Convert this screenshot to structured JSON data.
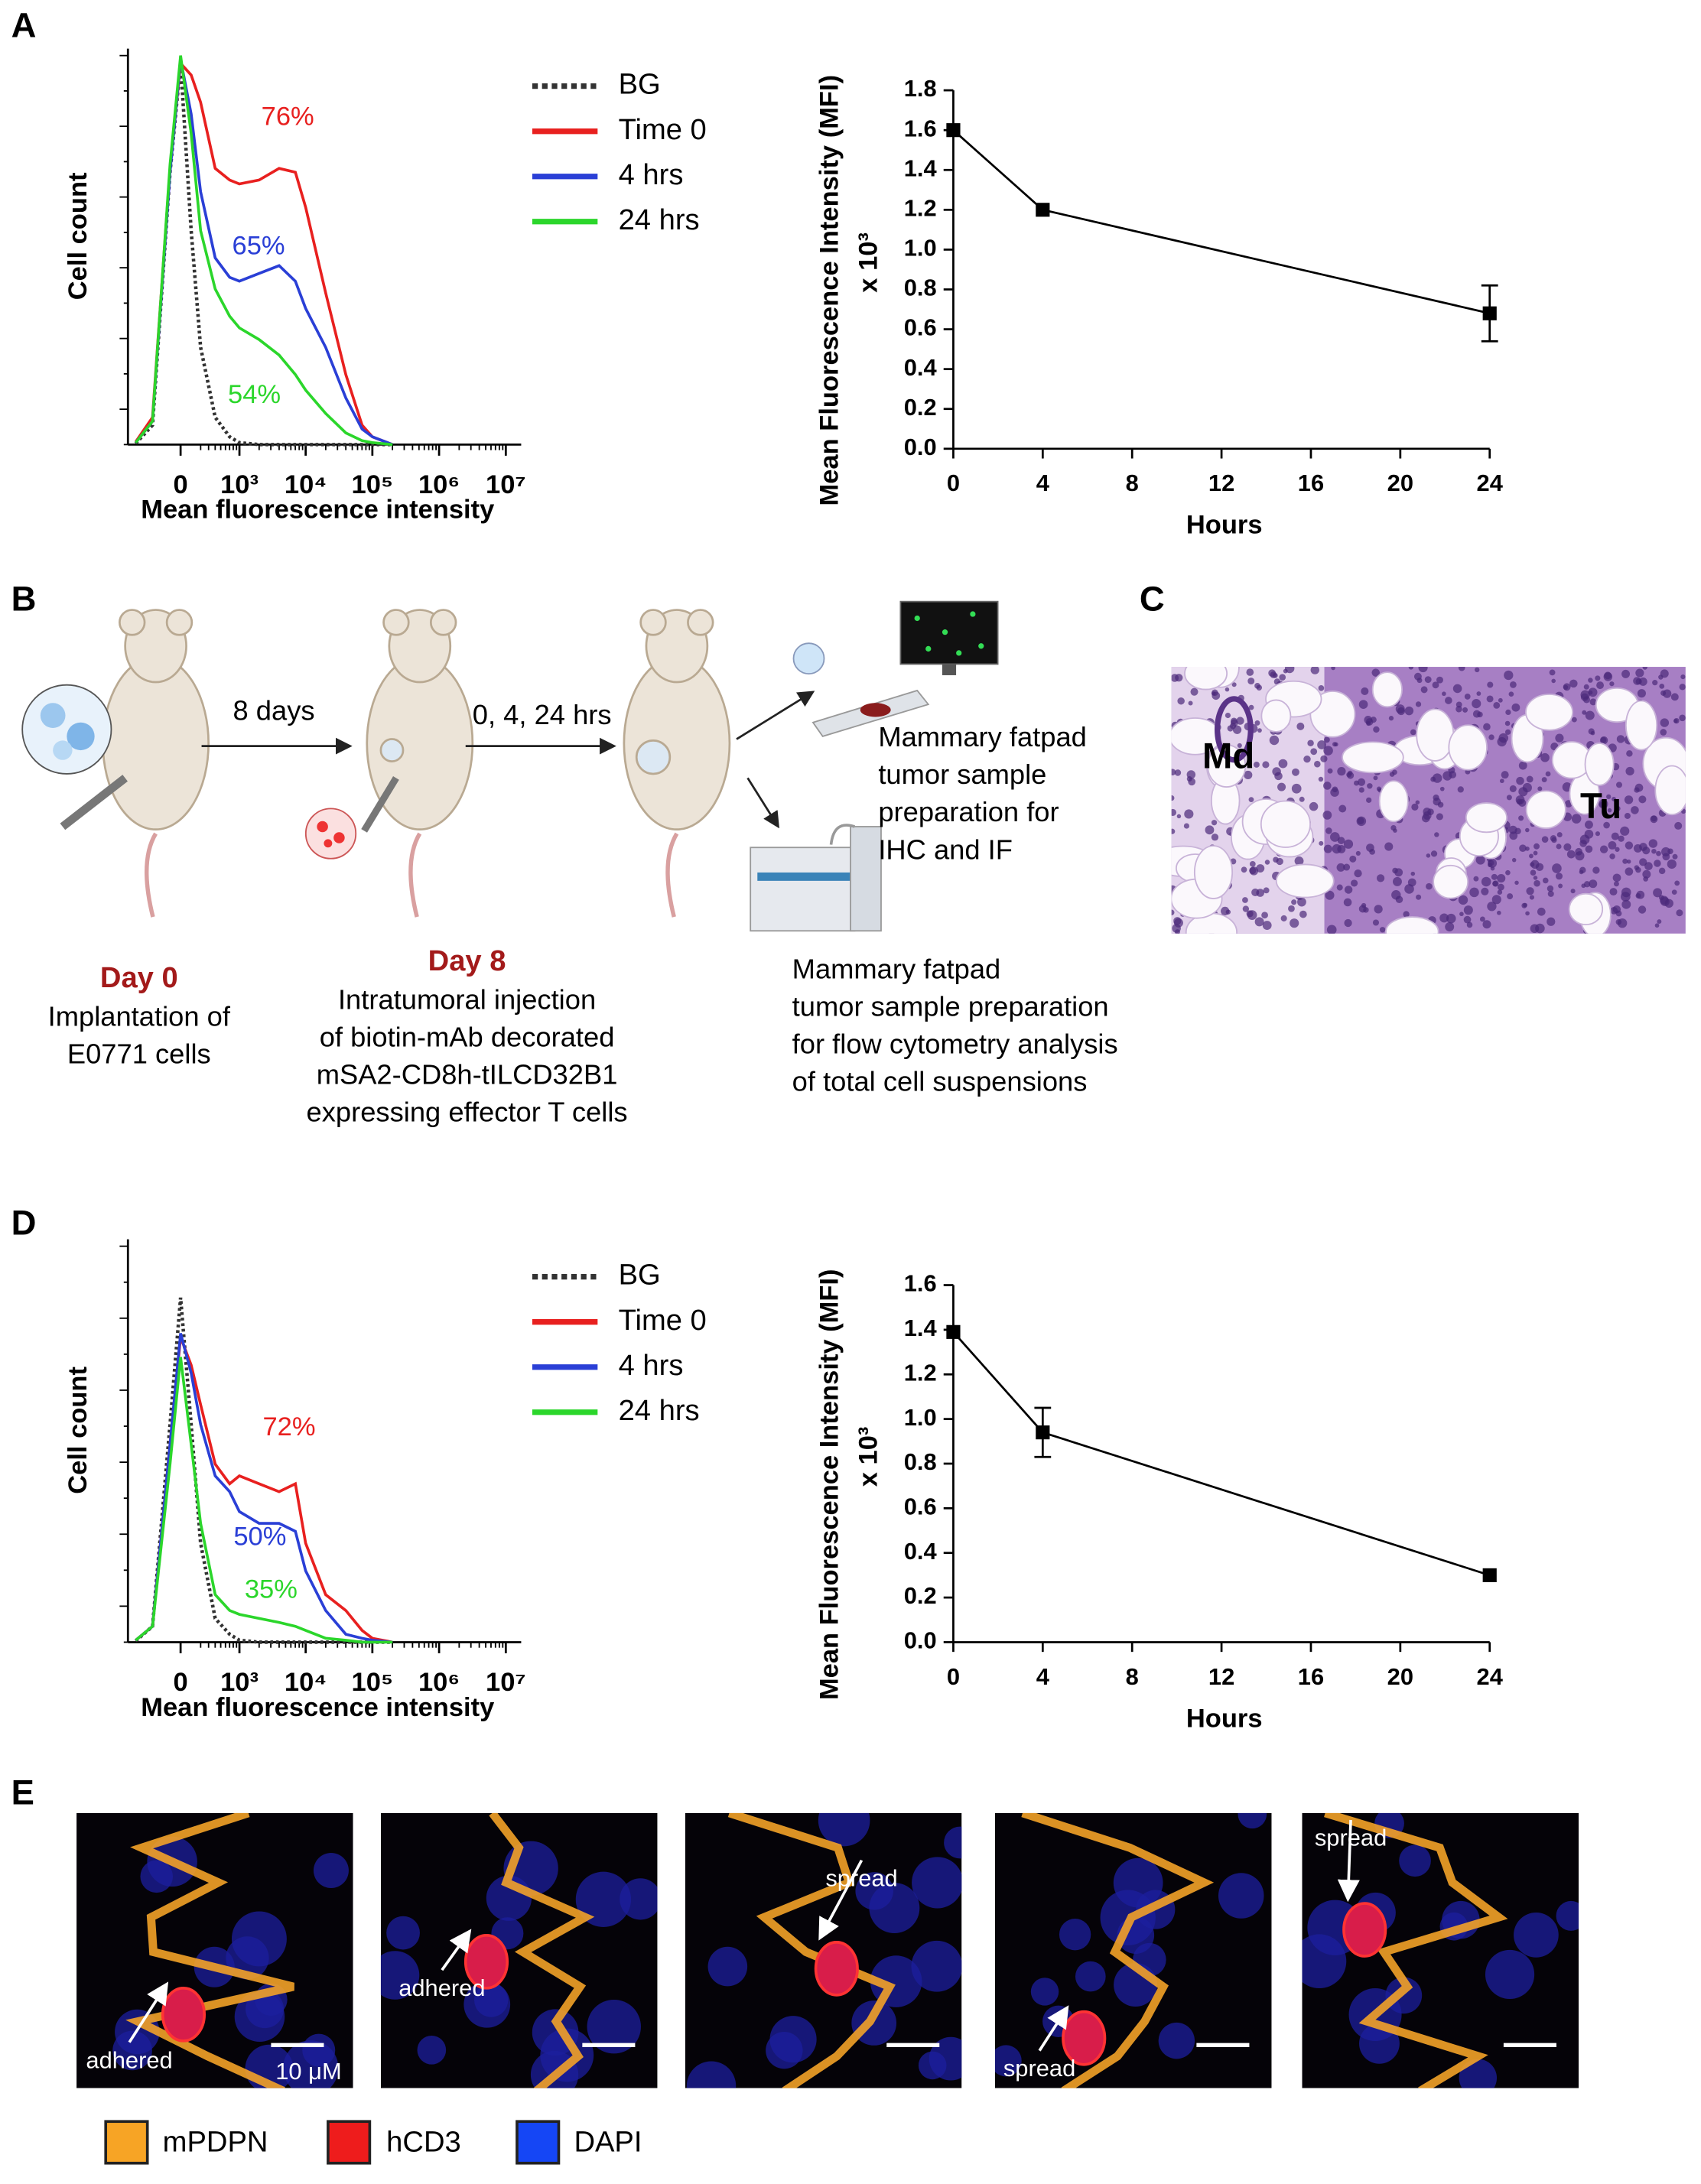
{
  "panel_labels": [
    "A",
    "B",
    "C",
    "D",
    "E"
  ],
  "chart_data": [
    {
      "type": "line",
      "xscale": "biexponential",
      "xlabel": "Mean fluorescence intensity",
      "ylabel": "Cell count",
      "x": [
        -600,
        -300,
        -100,
        0,
        100,
        200,
        400,
        700,
        1000,
        2000,
        4000,
        7000,
        10000,
        20000,
        40000,
        70000,
        100000,
        200000
      ],
      "xlim": [
        -800,
        17000000
      ],
      "xticks": [
        0,
        {
          "value": 1000,
          "label": "10³"
        },
        {
          "value": 10000,
          "label": "10⁴"
        },
        {
          "value": 100000,
          "label": "10⁵"
        },
        {
          "value": 1000000,
          "label": "10⁶"
        },
        {
          "value": 10000000,
          "label": "10⁷"
        }
      ],
      "ylim": [
        0,
        100
      ],
      "series": [
        {
          "name": "BG",
          "color": "#333333",
          "style": "dotted",
          "values": [
            0.3,
            5,
            70,
            98,
            55,
            25,
            7,
            2,
            0.5,
            0,
            0,
            0,
            0,
            0,
            0,
            0,
            0,
            0
          ]
        },
        {
          "name": "Time 0",
          "color": "#e8201f",
          "values": [
            0.7,
            7,
            71,
            98,
            95,
            88,
            71,
            68,
            67,
            68,
            71,
            70,
            61,
            39,
            18,
            5,
            2,
            0
          ]
        },
        {
          "name": "4 hrs",
          "color": "#2a3fd6",
          "values": [
            0.5,
            6,
            70,
            99,
            85,
            65,
            48,
            43,
            42,
            44,
            46,
            42,
            35,
            25,
            12,
            4,
            2,
            0
          ]
        },
        {
          "name": "24 hrs",
          "color": "#2bd62b",
          "values": [
            0.5,
            6,
            72,
            100,
            80,
            55,
            40,
            33,
            30,
            27,
            23,
            18,
            14,
            8,
            3,
            1,
            0.5,
            0
          ]
        }
      ],
      "annotations": [
        {
          "text": "76%",
          "color": "#e8201f"
        },
        {
          "text": "65%",
          "color": "#2a3fd6"
        },
        {
          "text": "54%",
          "color": "#2bd62b"
        }
      ]
    },
    {
      "type": "errorline",
      "xlabel": "Hours",
      "ylabel": "Mean Fluorescence Intensity (MFI)",
      "ylabel_unit": "x 10³",
      "x": [
        0,
        4,
        24
      ],
      "values": [
        1.6,
        1.2,
        0.68
      ],
      "errors": [
        null,
        null,
        0.14
      ],
      "color": "#000000",
      "xlim": [
        0,
        24
      ],
      "xticks": [
        0,
        4,
        8,
        12,
        16,
        20,
        24
      ],
      "ylim": [
        0,
        1.8
      ],
      "yticks": [
        {
          "value": 0,
          "label": "0.0"
        },
        0.2,
        0.4,
        0.6,
        0.8,
        {
          "value": 1,
          "label": "1.0"
        },
        1.2,
        1.4,
        1.6,
        1.8
      ]
    },
    {
      "type": "line",
      "xscale": "biexponential",
      "xlabel": "Mean fluorescence intensity",
      "ylabel": "Cell count",
      "x": [
        -600,
        -300,
        -100,
        0,
        100,
        200,
        400,
        700,
        1000,
        2000,
        4000,
        7000,
        10000,
        20000,
        40000,
        70000,
        100000,
        200000
      ],
      "xlim": [
        -800,
        17000000
      ],
      "xticks": [
        0,
        {
          "value": 1000,
          "label": "10³"
        },
        {
          "value": 10000,
          "label": "10⁴"
        },
        {
          "value": 100000,
          "label": "10⁵"
        },
        {
          "value": 1000000,
          "label": "10⁶"
        },
        {
          "value": 10000000,
          "label": "10⁷"
        }
      ],
      "ylim": [
        0,
        100
      ],
      "series": [
        {
          "name": "BG",
          "color": "#333333",
          "style": "dotted",
          "values": [
            0.3,
            4,
            55,
            87,
            55,
            25,
            6,
            2,
            0.5,
            0,
            0,
            0,
            0,
            0,
            0,
            0,
            0,
            0
          ]
        },
        {
          "name": "Time 0",
          "color": "#e8201f",
          "values": [
            0.5,
            4,
            50,
            77,
            70,
            60,
            45,
            40,
            42,
            40,
            38,
            40,
            25,
            12,
            8,
            3,
            1,
            0
          ]
        },
        {
          "name": "4 hrs",
          "color": "#2a3fd6",
          "values": [
            0.5,
            4,
            50,
            78,
            68,
            55,
            42,
            38,
            33,
            30,
            30,
            28,
            18,
            8,
            2,
            1,
            0.5,
            0
          ]
        },
        {
          "name": "24 hrs",
          "color": "#2bd62b",
          "values": [
            0.5,
            4,
            45,
            72,
            50,
            30,
            12,
            8,
            7,
            6,
            5,
            4,
            3,
            1,
            0.5,
            0,
            0,
            0
          ]
        }
      ],
      "annotations": [
        {
          "text": "72%",
          "color": "#e8201f"
        },
        {
          "text": "50%",
          "color": "#2a3fd6"
        },
        {
          "text": "35%",
          "color": "#2bd62b"
        }
      ]
    },
    {
      "type": "errorline",
      "xlabel": "Hours",
      "ylabel": "Mean Fluorescence Intensity (MFI)",
      "ylabel_unit": "x 10³",
      "x": [
        0,
        4,
        24
      ],
      "values": [
        1.39,
        0.94,
        0.3
      ],
      "errors": [
        null,
        0.11,
        null
      ],
      "color": "#000000",
      "xlim": [
        0,
        24
      ],
      "xticks": [
        0,
        4,
        8,
        12,
        16,
        20,
        24
      ],
      "ylim": [
        0,
        1.6
      ],
      "yticks": [
        {
          "value": 0,
          "label": "0.0"
        },
        0.2,
        0.4,
        0.6,
        0.8,
        {
          "value": 1,
          "label": "1.0"
        },
        1.2,
        1.4,
        1.6
      ]
    }
  ],
  "diagram": {
    "arrows": [
      "8 days",
      "0, 4, 24 hrs"
    ],
    "steps": [
      {
        "title": "Day 0",
        "lines": [
          "Implantation of",
          "E0771 cells"
        ]
      },
      {
        "title": "Day 8",
        "lines": [
          "Intratumoral injection",
          "of biotin-mAb decorated",
          "mSA2-CD8h-tILCD32B1",
          "expressing effector T cells"
        ]
      }
    ],
    "outputs": [
      {
        "lines": [
          "Mammary fatpad",
          "tumor sample",
          "preparation for",
          "IHC and IF"
        ]
      },
      {
        "lines": [
          "Mammary fatpad",
          "tumor sample preparation",
          "for flow cytometry analysis",
          "of total cell suspensions"
        ]
      }
    ]
  },
  "histology": {
    "labels": [
      "Md",
      "Tu"
    ]
  },
  "micrographs": {
    "annotations": [
      "adhered",
      "adhered",
      "spread",
      "spread",
      "spread"
    ],
    "scale_label": "10 μM",
    "legend": [
      {
        "name": "mPDPN",
        "color": "#f7a425"
      },
      {
        "name": "hCD3",
        "color": "#ee1c1c"
      },
      {
        "name": "DAPI",
        "color": "#1546f5"
      }
    ]
  }
}
